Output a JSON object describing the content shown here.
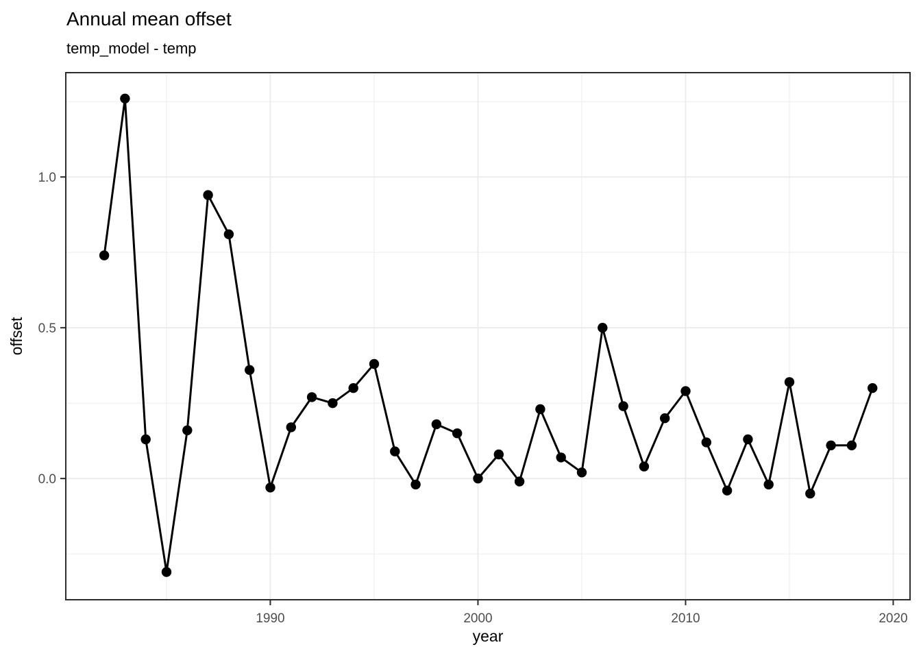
{
  "chart_data": {
    "type": "line",
    "title": "Annual mean offset",
    "subtitle": "temp_model - temp",
    "xlabel": "year",
    "ylabel": "offset",
    "series_name": "offset (temp_model - temp)",
    "x": [
      1982,
      1983,
      1984,
      1985,
      1986,
      1987,
      1988,
      1989,
      1990,
      1991,
      1992,
      1993,
      1994,
      1995,
      1996,
      1997,
      1998,
      1999,
      2000,
      2001,
      2002,
      2003,
      2004,
      2005,
      2006,
      2007,
      2008,
      2009,
      2010,
      2011,
      2012,
      2013,
      2014,
      2015,
      2016,
      2017,
      2018,
      2019
    ],
    "y": [
      0.74,
      1.26,
      0.13,
      -0.31,
      0.16,
      0.94,
      0.81,
      0.36,
      -0.03,
      0.17,
      0.27,
      0.25,
      0.3,
      0.38,
      0.09,
      -0.02,
      0.18,
      0.15,
      0.0,
      0.08,
      -0.01,
      0.23,
      0.07,
      0.02,
      0.5,
      0.24,
      0.04,
      0.2,
      0.29,
      0.12,
      -0.04,
      0.13,
      -0.02,
      0.32,
      -0.05,
      0.11,
      0.11,
      0.3
    ],
    "x_ticks": [
      {
        "v": 1990,
        "label": "1990"
      },
      {
        "v": 2000,
        "label": "2000"
      },
      {
        "v": 2010,
        "label": "2010"
      },
      {
        "v": 2020,
        "label": "2020"
      }
    ],
    "y_ticks": [
      {
        "v": 0.0,
        "label": "0.0"
      },
      {
        "v": 0.5,
        "label": "0.5"
      },
      {
        "v": 1.0,
        "label": "1.0"
      }
    ],
    "x_minor_ticks": [
      1985,
      1995,
      2005,
      2015
    ],
    "y_minor_ticks": [
      -0.25,
      0.25,
      0.75,
      1.25
    ],
    "xlim": [
      1980.15,
      2020.81
    ],
    "ylim": [
      -0.402,
      1.346
    ],
    "grid": "on",
    "legend": "none",
    "marker": "filled-circle",
    "colors": {
      "line": "#000000",
      "point": "#000000",
      "grid_major": "#ebebeb",
      "grid_minor": "#f0f0f0",
      "panel_border": "#2b2b2b",
      "tick_mark": "#2b2b2b",
      "tick_label": "#4d4d4d",
      "text": "#000000",
      "background": "#ffffff"
    }
  }
}
